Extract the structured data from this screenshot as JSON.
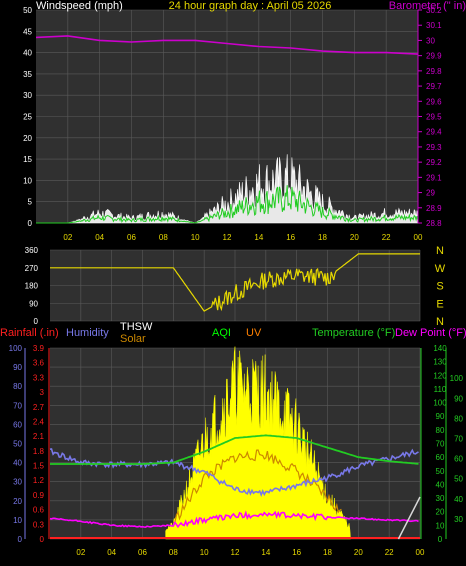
{
  "top_panel": {
    "left_title": "Windspeed (mph)",
    "center_title": "24 hour graph day : April 05 2026",
    "right_title": "Barometer (\" in)",
    "left_ticks": [
      "0",
      "5",
      "10",
      "15",
      "20",
      "25",
      "30",
      "35",
      "40",
      "45",
      "50"
    ],
    "right_ticks": [
      "28.8",
      "28.9",
      "29",
      "29.1",
      "29.2",
      "29.3",
      "29.4",
      "29.5",
      "29.6",
      "29.7",
      "29.8",
      "29.9",
      "30",
      "30.1",
      "30.2"
    ],
    "x_ticks": [
      "02",
      "04",
      "06",
      "08",
      "10",
      "12",
      "14",
      "16",
      "18",
      "20",
      "22",
      "00"
    ]
  },
  "mid_panel": {
    "left_ticks": [
      "0",
      "90",
      "180",
      "270",
      "360"
    ],
    "compass": [
      "N",
      "W",
      "S",
      "E",
      "N"
    ],
    "x_ticks": [
      "02",
      "04",
      "06",
      "08",
      "10",
      "12",
      "14",
      "16",
      "18",
      "20",
      "22",
      "00"
    ]
  },
  "bottom_panel": {
    "labels": {
      "rainfall": "Rainfall (.in)",
      "humidity": "Humidity",
      "thsw": "THSW",
      "solar": "Solar",
      "aqi": "AQI",
      "uv": "UV",
      "temperature": "Temperature (°F)",
      "dew_point": "Dew Point (°F)"
    },
    "humidity_ticks": [
      "0",
      "10",
      "20",
      "30",
      "40",
      "50",
      "60",
      "70",
      "80",
      "90",
      "100"
    ],
    "rain_ticks": [
      "0",
      "0.3",
      "0.6",
      "0.9",
      "1.2",
      "1.5",
      "1.8",
      "2.1",
      "2.4",
      "2.7",
      "3",
      "3.3",
      "3.6",
      "3.9"
    ],
    "temp_ticks": [
      "0",
      "10",
      "20",
      "30",
      "40",
      "50",
      "60",
      "70",
      "80",
      "90",
      "100",
      "110",
      "120",
      "130",
      "140"
    ],
    "far_right_ticks": [
      "30",
      "40",
      "50",
      "60",
      "70",
      "80",
      "90",
      "100"
    ],
    "x_ticks": [
      "02",
      "04",
      "06",
      "08",
      "10",
      "12",
      "14",
      "16",
      "18",
      "20",
      "22",
      "00"
    ]
  },
  "colors": {
    "grid": "#5a5a5a",
    "windspeed": "#ffffff",
    "wind_gust": "#22cc22",
    "barometer": "#cc00cc",
    "wind_dir": "#e6d800",
    "humidity": "#7878e8",
    "rain": "#ff2020",
    "solar": "#ffff00",
    "thsw": "#cc8800",
    "temperature": "#22cc22",
    "dew_point": "#ff00ff",
    "aqi": "#00ff00",
    "uv": "#ff8000"
  },
  "chart_data": [
    {
      "type": "line",
      "panel": "top",
      "title": "24 hour graph day : April 05 2026",
      "x": [
        "00",
        "02",
        "04",
        "06",
        "08",
        "10",
        "12",
        "14",
        "16",
        "18",
        "20",
        "22",
        "00"
      ],
      "ylim_left": [
        0,
        50
      ],
      "ylim_right": [
        28.8,
        30.2
      ],
      "series": [
        {
          "name": "Windspeed (mph)",
          "axis": "left",
          "values": [
            0,
            0,
            2,
            1,
            2,
            0,
            4,
            8,
            9,
            4,
            1,
            2,
            2
          ]
        },
        {
          "name": "Barometer (\" in)",
          "axis": "right",
          "values": [
            30.02,
            30.03,
            30.0,
            29.99,
            30.0,
            30.0,
            29.98,
            29.96,
            29.95,
            29.93,
            29.92,
            29.92,
            29.91
          ]
        }
      ]
    },
    {
      "type": "line",
      "panel": "middle",
      "x": [
        "00",
        "02",
        "04",
        "06",
        "08",
        "10",
        "12",
        "14",
        "16",
        "18",
        "20",
        "22",
        "00"
      ],
      "ylim": [
        0,
        360
      ],
      "series": [
        {
          "name": "Wind direction",
          "values": [
            270,
            270,
            270,
            270,
            270,
            50,
            140,
            210,
            230,
            220,
            340,
            340,
            340
          ]
        }
      ]
    },
    {
      "type": "area",
      "panel": "bottom",
      "x": [
        "00",
        "02",
        "04",
        "06",
        "08",
        "10",
        "12",
        "14",
        "16",
        "18",
        "20",
        "22",
        "00"
      ],
      "ylim_humidity": [
        0,
        100
      ],
      "ylim_rain": [
        0,
        3.9
      ],
      "ylim_temp": [
        0,
        140
      ],
      "series": [
        {
          "name": "Humidity",
          "axis": "humidity",
          "values": [
            46,
            40,
            39,
            39,
            40,
            35,
            26,
            24,
            28,
            32,
            38,
            42,
            46
          ]
        },
        {
          "name": "Temperature (°F)",
          "axis": "temp",
          "values": [
            55,
            55,
            55,
            55,
            56,
            64,
            74,
            76,
            74,
            67,
            60,
            57,
            55
          ]
        },
        {
          "name": "Dew Point (°F)",
          "axis": "temp",
          "values": [
            15,
            13,
            10,
            9,
            10,
            14,
            17,
            18,
            17,
            16,
            15,
            14,
            13
          ]
        },
        {
          "name": "Solar",
          "axis": "temp",
          "values": [
            0,
            0,
            0,
            0,
            10,
            70,
            110,
            105,
            80,
            30,
            0,
            0,
            0
          ]
        },
        {
          "name": "THSW",
          "axis": "temp",
          "values": [
            0,
            0,
            0,
            0,
            12,
            45,
            60,
            62,
            50,
            30,
            5,
            0,
            0
          ]
        },
        {
          "name": "Rainfall (.in)",
          "axis": "rain",
          "values": [
            0,
            0,
            0,
            0,
            0,
            0,
            0,
            0,
            0,
            0,
            0,
            0,
            0
          ]
        }
      ]
    }
  ]
}
